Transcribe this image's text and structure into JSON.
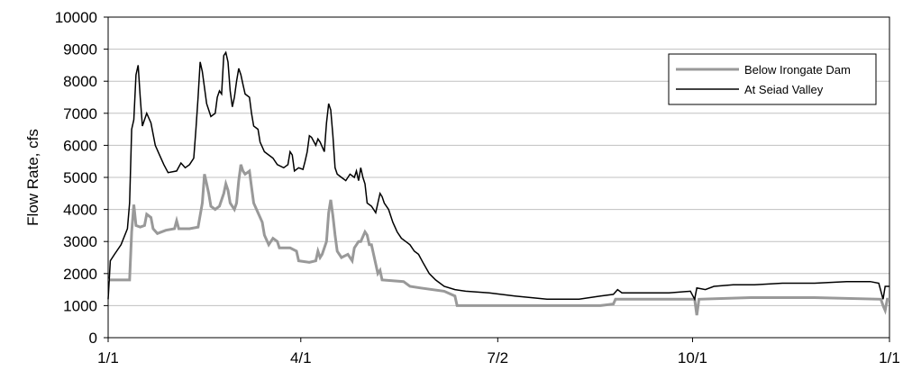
{
  "chart_data": {
    "type": "line",
    "title": "",
    "xlabel": "",
    "ylabel": "Flow Rate, cfs",
    "ylim": [
      0,
      10000
    ],
    "yticks": [
      "0",
      "1000",
      "2000",
      "3000",
      "4000",
      "5000",
      "6000",
      "7000",
      "8000",
      "9000",
      "10000"
    ],
    "xlim": [
      0,
      365
    ],
    "xticks": [
      {
        "day": 0,
        "label": "1/1"
      },
      {
        "day": 90,
        "label": "4/1"
      },
      {
        "day": 182,
        "label": "7/2"
      },
      {
        "day": 273,
        "label": "10/1"
      },
      {
        "day": 365,
        "label": "1/1"
      }
    ],
    "grid": true,
    "legend_position": "top-right",
    "series": [
      {
        "name": "Below Irongate Dam",
        "color": "#999999",
        "points": [
          [
            0,
            1800
          ],
          [
            10,
            1800
          ],
          [
            11,
            3300
          ],
          [
            12,
            4150
          ],
          [
            13,
            3500
          ],
          [
            15,
            3450
          ],
          [
            17,
            3500
          ],
          [
            18,
            3850
          ],
          [
            20,
            3750
          ],
          [
            21,
            3400
          ],
          [
            23,
            3250
          ],
          [
            27,
            3350
          ],
          [
            31,
            3400
          ],
          [
            32,
            3650
          ],
          [
            33,
            3400
          ],
          [
            38,
            3400
          ],
          [
            42,
            3450
          ],
          [
            44,
            4200
          ],
          [
            45,
            5100
          ],
          [
            46,
            4800
          ],
          [
            47,
            4500
          ],
          [
            48,
            4100
          ],
          [
            50,
            4000
          ],
          [
            52,
            4100
          ],
          [
            54,
            4500
          ],
          [
            55,
            4800
          ],
          [
            56,
            4600
          ],
          [
            57,
            4200
          ],
          [
            59,
            4000
          ],
          [
            60,
            4200
          ],
          [
            61,
            4900
          ],
          [
            62,
            5400
          ],
          [
            63,
            5200
          ],
          [
            64,
            5100
          ],
          [
            66,
            5200
          ],
          [
            67,
            4700
          ],
          [
            68,
            4200
          ],
          [
            70,
            3900
          ],
          [
            72,
            3600
          ],
          [
            73,
            3200
          ],
          [
            75,
            2900
          ],
          [
            77,
            3100
          ],
          [
            79,
            3000
          ],
          [
            80,
            2800
          ],
          [
            85,
            2800
          ],
          [
            88,
            2700
          ],
          [
            89,
            2400
          ],
          [
            94,
            2350
          ],
          [
            97,
            2400
          ],
          [
            98,
            2700
          ],
          [
            99,
            2500
          ],
          [
            100,
            2600
          ],
          [
            102,
            3000
          ],
          [
            103,
            3900
          ],
          [
            104,
            4300
          ],
          [
            105,
            3800
          ],
          [
            106,
            3200
          ],
          [
            107,
            2700
          ],
          [
            109,
            2500
          ],
          [
            112,
            2600
          ],
          [
            114,
            2400
          ],
          [
            115,
            2800
          ],
          [
            117,
            3000
          ],
          [
            118,
            3000
          ],
          [
            120,
            3300
          ],
          [
            121,
            3200
          ],
          [
            122,
            2900
          ],
          [
            123,
            2900
          ],
          [
            125,
            2300
          ],
          [
            126,
            2000
          ],
          [
            127,
            2100
          ],
          [
            128,
            1800
          ],
          [
            138,
            1750
          ],
          [
            141,
            1600
          ],
          [
            146,
            1550
          ],
          [
            157,
            1450
          ],
          [
            162,
            1300
          ],
          [
            163,
            1000
          ],
          [
            182,
            1000
          ],
          [
            200,
            1000
          ],
          [
            230,
            1000
          ],
          [
            236,
            1050
          ],
          [
            237,
            1200
          ],
          [
            260,
            1200
          ],
          [
            274,
            1200
          ],
          [
            275,
            700
          ],
          [
            276,
            1200
          ],
          [
            300,
            1250
          ],
          [
            330,
            1250
          ],
          [
            361,
            1200
          ],
          [
            362,
            1000
          ],
          [
            363,
            850
          ],
          [
            364,
            1200
          ],
          [
            365,
            1200
          ]
        ]
      },
      {
        "name": "At Seiad Valley",
        "color": "#000000",
        "points": [
          [
            0,
            1200
          ],
          [
            1,
            2400
          ],
          [
            3,
            2600
          ],
          [
            6,
            2900
          ],
          [
            9,
            3400
          ],
          [
            10,
            4200
          ],
          [
            11,
            6500
          ],
          [
            12,
            6800
          ],
          [
            13,
            8200
          ],
          [
            14,
            8500
          ],
          [
            15,
            7500
          ],
          [
            16,
            6600
          ],
          [
            17,
            6800
          ],
          [
            18,
            7000
          ],
          [
            20,
            6700
          ],
          [
            22,
            6000
          ],
          [
            24,
            5700
          ],
          [
            26,
            5400
          ],
          [
            28,
            5150
          ],
          [
            32,
            5200
          ],
          [
            34,
            5450
          ],
          [
            36,
            5300
          ],
          [
            38,
            5400
          ],
          [
            40,
            5600
          ],
          [
            41,
            6500
          ],
          [
            42,
            7500
          ],
          [
            43,
            8600
          ],
          [
            44,
            8300
          ],
          [
            45,
            7800
          ],
          [
            46,
            7300
          ],
          [
            48,
            6900
          ],
          [
            50,
            7000
          ],
          [
            51,
            7500
          ],
          [
            52,
            7700
          ],
          [
            53,
            7600
          ],
          [
            54,
            8800
          ],
          [
            55,
            8900
          ],
          [
            56,
            8600
          ],
          [
            57,
            7700
          ],
          [
            58,
            7200
          ],
          [
            59,
            7500
          ],
          [
            60,
            8000
          ],
          [
            61,
            8400
          ],
          [
            62,
            8200
          ],
          [
            63,
            7900
          ],
          [
            64,
            7600
          ],
          [
            66,
            7500
          ],
          [
            67,
            7000
          ],
          [
            68,
            6600
          ],
          [
            70,
            6500
          ],
          [
            71,
            6100
          ],
          [
            73,
            5800
          ],
          [
            75,
            5700
          ],
          [
            77,
            5600
          ],
          [
            79,
            5400
          ],
          [
            82,
            5300
          ],
          [
            84,
            5400
          ],
          [
            85,
            5800
          ],
          [
            86,
            5700
          ],
          [
            87,
            5200
          ],
          [
            89,
            5300
          ],
          [
            91,
            5250
          ],
          [
            92,
            5500
          ],
          [
            93,
            5800
          ],
          [
            94,
            6300
          ],
          [
            95,
            6250
          ],
          [
            97,
            6000
          ],
          [
            98,
            6200
          ],
          [
            99,
            6100
          ],
          [
            101,
            5800
          ],
          [
            102,
            6700
          ],
          [
            103,
            7300
          ],
          [
            104,
            7100
          ],
          [
            105,
            6300
          ],
          [
            106,
            5300
          ],
          [
            107,
            5100
          ],
          [
            109,
            5000
          ],
          [
            111,
            4900
          ],
          [
            113,
            5100
          ],
          [
            115,
            5000
          ],
          [
            116,
            5200
          ],
          [
            117,
            4900
          ],
          [
            118,
            5300
          ],
          [
            119,
            5000
          ],
          [
            120,
            4800
          ],
          [
            121,
            4200
          ],
          [
            123,
            4100
          ],
          [
            125,
            3900
          ],
          [
            126,
            4200
          ],
          [
            127,
            4500
          ],
          [
            128,
            4400
          ],
          [
            129,
            4200
          ],
          [
            131,
            4000
          ],
          [
            133,
            3600
          ],
          [
            135,
            3300
          ],
          [
            137,
            3100
          ],
          [
            139,
            3000
          ],
          [
            141,
            2900
          ],
          [
            143,
            2700
          ],
          [
            145,
            2600
          ],
          [
            147,
            2350
          ],
          [
            150,
            2000
          ],
          [
            153,
            1800
          ],
          [
            157,
            1600
          ],
          [
            162,
            1500
          ],
          [
            167,
            1450
          ],
          [
            178,
            1400
          ],
          [
            190,
            1300
          ],
          [
            205,
            1200
          ],
          [
            220,
            1200
          ],
          [
            230,
            1300
          ],
          [
            236,
            1350
          ],
          [
            238,
            1500
          ],
          [
            240,
            1400
          ],
          [
            248,
            1400
          ],
          [
            262,
            1400
          ],
          [
            272,
            1450
          ],
          [
            274,
            1200
          ],
          [
            275,
            1550
          ],
          [
            279,
            1500
          ],
          [
            283,
            1600
          ],
          [
            292,
            1650
          ],
          [
            302,
            1650
          ],
          [
            315,
            1700
          ],
          [
            330,
            1700
          ],
          [
            345,
            1750
          ],
          [
            356,
            1750
          ],
          [
            360,
            1700
          ],
          [
            362,
            1200
          ],
          [
            363,
            1600
          ],
          [
            365,
            1600
          ]
        ]
      }
    ]
  }
}
